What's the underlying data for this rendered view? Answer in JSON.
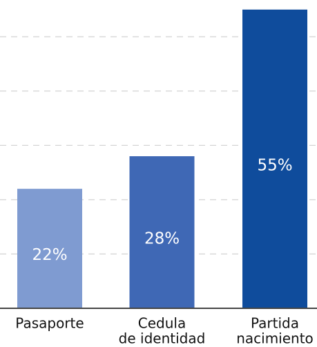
{
  "chart_data": {
    "type": "bar",
    "categories": [
      [
        "Pasaporte"
      ],
      [
        "Cedula",
        "de identidad"
      ],
      [
        "Partida",
        "nacimiento"
      ]
    ],
    "values": [
      22,
      28,
      55
    ],
    "value_labels": [
      "22%",
      "28%",
      "55%"
    ],
    "colors": [
      "#7f9bd1",
      "#3f68b5",
      "#0f4c9c"
    ],
    "ylim": [
      0,
      56
    ],
    "yticks": [
      10,
      20,
      30,
      40,
      50
    ],
    "grid": true
  }
}
